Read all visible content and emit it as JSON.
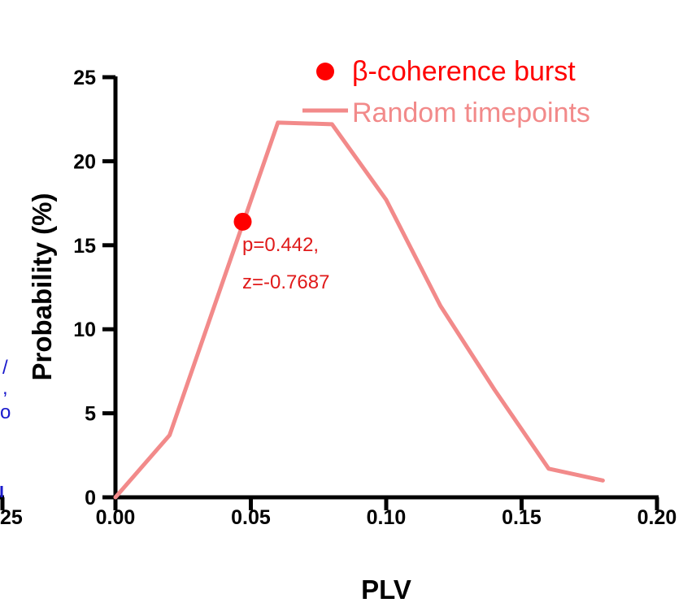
{
  "chart_data": {
    "type": "line",
    "xlabel": "PLV",
    "ylabel": "Probability (%)",
    "xlim": [
      0,
      0.2
    ],
    "ylim": [
      0,
      25
    ],
    "x_ticks": [
      "0.00",
      "0.05",
      "0.10",
      "0.15",
      "0.20"
    ],
    "y_ticks": [
      "0",
      "5",
      "10",
      "15",
      "20",
      "25"
    ],
    "grid": false,
    "legend_position": "top-right",
    "series": [
      {
        "name": "Random timepoints",
        "kind": "line",
        "color": "#f28a8a",
        "x": [
          0.0,
          0.02,
          0.06,
          0.08,
          0.1,
          0.12,
          0.14,
          0.16,
          0.18
        ],
        "y": [
          0.0,
          3.7,
          22.3,
          22.2,
          17.7,
          11.4,
          6.4,
          1.7,
          1.0
        ]
      },
      {
        "name": "β-coherence burst",
        "kind": "scatter",
        "color": "#ff0000",
        "x": [
          0.047
        ],
        "y": [
          16.4
        ]
      }
    ],
    "annotation": {
      "line1": "p=0.442,",
      "line2": "z=-0.7687",
      "color": "#e01a1a"
    }
  },
  "left_clipped_panel": {
    "tick_label": "25",
    "fragments": [
      "/",
      ",",
      "o"
    ]
  }
}
